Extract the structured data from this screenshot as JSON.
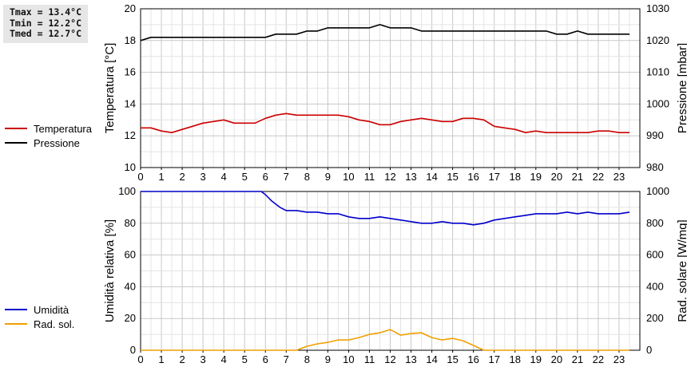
{
  "stats": {
    "tmax": "Tmax = 13.4°C",
    "tmin": "Tmin = 12.2°C",
    "tmed": "Tmed = 12.7°C"
  },
  "legend_top": [
    {
      "label": "Temperatura",
      "color": "#cc0000"
    },
    {
      "label": "Pressione",
      "color": "#000000"
    }
  ],
  "legend_bottom": [
    {
      "label": "Umidità",
      "color": "#0000cc"
    },
    {
      "label": "Rad. sol.",
      "color": "#f0a000"
    }
  ],
  "chart_data": [
    {
      "type": "line",
      "x_ticks": [
        "0",
        "1",
        "2",
        "3",
        "4",
        "5",
        "6",
        "7",
        "8",
        "9",
        "10",
        "11",
        "12",
        "13",
        "14",
        "15",
        "16",
        "17",
        "18",
        "19",
        "20",
        "21",
        "22",
        "23"
      ],
      "xlim": [
        0,
        24
      ],
      "ylabel": "Temperatura [°C]",
      "ylim": [
        10,
        20
      ],
      "y_ticks": [
        "10",
        "12",
        "14",
        "16",
        "18",
        "20"
      ],
      "y2label": "Pressione [mbar]",
      "y2lim": [
        980,
        1030
      ],
      "y2_ticks": [
        "980",
        "990",
        "1000",
        "1010",
        "1020",
        "1030"
      ],
      "grid": true,
      "series": [
        {
          "name": "Temperatura",
          "axis": "left",
          "color": "#cc0000",
          "x": [
            0,
            0.5,
            1,
            1.5,
            2,
            2.5,
            3,
            3.5,
            4,
            4.5,
            5,
            5.5,
            6,
            6.5,
            7,
            7.5,
            8,
            8.5,
            9,
            9.5,
            10,
            10.5,
            11,
            11.5,
            12,
            12.5,
            13,
            13.5,
            14,
            14.5,
            15,
            15.5,
            16,
            16.5,
            17,
            17.5,
            18,
            18.5,
            19,
            19.5,
            20,
            20.5,
            21,
            21.5,
            22,
            22.5,
            23,
            23.5
          ],
          "y": [
            12.5,
            12.5,
            12.3,
            12.2,
            12.4,
            12.6,
            12.8,
            12.9,
            13.0,
            12.8,
            12.8,
            12.8,
            13.1,
            13.3,
            13.4,
            13.3,
            13.3,
            13.3,
            13.3,
            13.3,
            13.2,
            13.0,
            12.9,
            12.7,
            12.7,
            12.9,
            13.0,
            13.1,
            13.0,
            12.9,
            12.9,
            13.1,
            13.1,
            13.0,
            12.6,
            12.5,
            12.4,
            12.2,
            12.3,
            12.2,
            12.2,
            12.2,
            12.2,
            12.2,
            12.3,
            12.3,
            12.2,
            12.2
          ]
        },
        {
          "name": "Pressione",
          "axis": "right",
          "color": "#000000",
          "x": [
            0,
            0.5,
            1,
            1.5,
            2,
            2.5,
            3,
            3.5,
            4,
            4.5,
            5,
            5.5,
            6,
            6.5,
            7,
            7.5,
            8,
            8.5,
            9,
            9.5,
            10,
            10.5,
            11,
            11.5,
            12,
            12.5,
            13,
            13.5,
            14,
            14.5,
            15,
            15.5,
            16,
            16.5,
            17,
            17.5,
            18,
            18.5,
            19,
            19.5,
            20,
            20.5,
            21,
            21.5,
            22,
            22.5,
            23,
            23.5
          ],
          "y": [
            1020,
            1021,
            1021,
            1021,
            1021,
            1021,
            1021,
            1021,
            1021,
            1021,
            1021,
            1021,
            1021,
            1022,
            1022,
            1022,
            1023,
            1023,
            1024,
            1024,
            1024,
            1024,
            1024,
            1025,
            1024,
            1024,
            1024,
            1023,
            1023,
            1023,
            1023,
            1023,
            1023,
            1023,
            1023,
            1023,
            1023,
            1023,
            1023,
            1023,
            1022,
            1022,
            1023,
            1022,
            1022,
            1022,
            1022,
            1022
          ]
        }
      ]
    },
    {
      "type": "line",
      "x_ticks": [
        "0",
        "1",
        "2",
        "3",
        "4",
        "5",
        "6",
        "7",
        "8",
        "9",
        "10",
        "11",
        "12",
        "13",
        "14",
        "15",
        "16",
        "17",
        "18",
        "19",
        "20",
        "21",
        "22",
        "23"
      ],
      "xlim": [
        0,
        24
      ],
      "ylabel": "Umidità relativa [%]",
      "ylim": [
        0,
        100
      ],
      "y_ticks": [
        "0",
        "20",
        "40",
        "60",
        "80",
        "100"
      ],
      "y2label": "Rad. solare [W/mq]",
      "y2lim": [
        0,
        1000
      ],
      "y2_ticks": [
        "0",
        "200",
        "400",
        "600",
        "800",
        "1000"
      ],
      "grid": true,
      "series": [
        {
          "name": "Umidità",
          "axis": "left",
          "color": "#0000cc",
          "x": [
            0,
            1,
            2,
            3,
            4,
            5,
            5.5,
            5.8,
            6,
            6.3,
            6.7,
            7,
            7.5,
            8,
            8.5,
            9,
            9.5,
            10,
            10.5,
            11,
            11.5,
            12,
            12.5,
            13,
            13.5,
            14,
            14.5,
            15,
            15.5,
            16,
            16.5,
            17,
            17.5,
            18,
            18.5,
            19,
            19.5,
            20,
            20.5,
            21,
            21.5,
            22,
            22.5,
            23,
            23.5
          ],
          "y": [
            100,
            100,
            100,
            100,
            100,
            100,
            100,
            100,
            98,
            94,
            90,
            88,
            88,
            87,
            87,
            86,
            86,
            84,
            83,
            83,
            84,
            83,
            82,
            81,
            80,
            80,
            81,
            80,
            80,
            79,
            80,
            82,
            83,
            84,
            85,
            86,
            86,
            86,
            87,
            86,
            87,
            86,
            86,
            86,
            87
          ]
        },
        {
          "name": "Rad. sol.",
          "axis": "right",
          "color": "#f0a000",
          "x": [
            0,
            1,
            2,
            3,
            4,
            5,
            6,
            7,
            7.5,
            8,
            8.5,
            9,
            9.5,
            10,
            10.5,
            11,
            11.5,
            12,
            12.5,
            13,
            13.5,
            14,
            14.5,
            15,
            15.5,
            16,
            16.5,
            17,
            18,
            19,
            20,
            21,
            22,
            23,
            23.5
          ],
          "y": [
            0,
            0,
            0,
            0,
            0,
            0,
            0,
            0,
            0,
            25,
            40,
            50,
            65,
            65,
            80,
            100,
            110,
            130,
            95,
            105,
            110,
            80,
            65,
            75,
            60,
            30,
            0,
            0,
            0,
            0,
            0,
            0,
            0,
            0,
            0
          ]
        }
      ]
    }
  ]
}
